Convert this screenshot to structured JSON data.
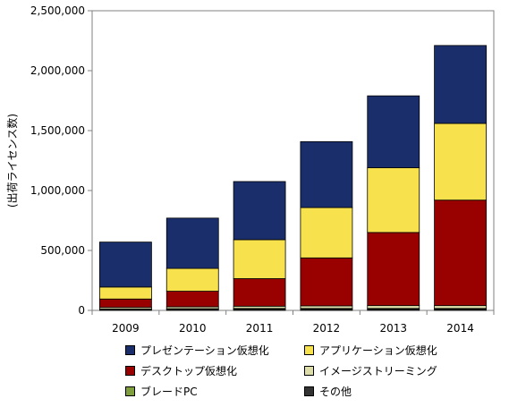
{
  "chart_data": {
    "type": "bar",
    "stacked": true,
    "categories": [
      "2009",
      "2010",
      "2011",
      "2012",
      "2013",
      "2014"
    ],
    "ylabel": "(出荷ライセンス数)",
    "ylim": [
      0,
      2500000
    ],
    "yticks": [
      0,
      500000,
      1000000,
      1500000,
      2000000,
      2500000
    ],
    "ytick_labels": [
      "0",
      "500,000",
      "1,000,000",
      "1,500,000",
      "2,000,000",
      "2,500,000"
    ],
    "grid": false,
    "legend_position": "bottom",
    "series": [
      {
        "name": "その他",
        "color": "#333333",
        "values": [
          8000,
          9000,
          10000,
          10000,
          10000,
          10000
        ]
      },
      {
        "name": "ブレードPC",
        "color": "#7f9f3f",
        "values": [
          4000,
          5000,
          6000,
          6000,
          6000,
          6000
        ]
      },
      {
        "name": "イメージストリーミング",
        "color": "#ddddaa",
        "values": [
          13000,
          16000,
          19000,
          22000,
          24000,
          24000
        ]
      },
      {
        "name": "デスクトップ仮想化",
        "color": "#990000",
        "values": [
          70000,
          130000,
          230000,
          400000,
          610000,
          880000
        ]
      },
      {
        "name": "アプリケーション仮想化",
        "color": "#f7e24d",
        "values": [
          100000,
          190000,
          325000,
          420000,
          540000,
          640000
        ]
      },
      {
        "name": "プレゼンテーション仮想化",
        "color": "#1a2e6b",
        "values": [
          375000,
          420000,
          485000,
          550000,
          600000,
          650000
        ]
      }
    ]
  },
  "legend": [
    {
      "label": "プレゼンテーション仮想化",
      "color": "#1a2e6b"
    },
    {
      "label": "アプリケーション仮想化",
      "color": "#f7e24d"
    },
    {
      "label": "デスクトップ仮想化",
      "color": "#990000"
    },
    {
      "label": "イメージストリーミング",
      "color": "#ddddaa"
    },
    {
      "label": "ブレードPC",
      "color": "#7f9f3f"
    },
    {
      "label": "その他",
      "color": "#333333"
    }
  ]
}
